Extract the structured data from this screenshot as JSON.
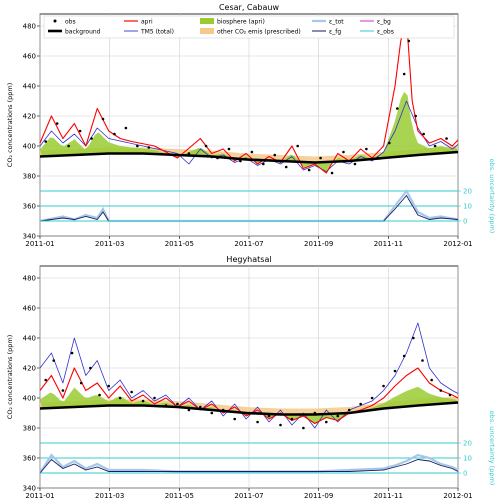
{
  "chart_data": [
    {
      "type": "line",
      "title": "Cesar, Cabauw",
      "ylabel": "CO₂ concentrations (ppm)",
      "ylabel_right": "obs. uncertainty (ppm)",
      "x_ticks": [
        "2011-01",
        "2011-03",
        "2011-05",
        "2011-07",
        "2011-09",
        "2011-11",
        "2012-01"
      ],
      "y_ticks": [
        340,
        360,
        380,
        400,
        420,
        440,
        460,
        480
      ],
      "y_ticks_right": [
        0,
        10,
        20
      ],
      "ylim": [
        340,
        488
      ],
      "xlim": [
        0,
        365
      ],
      "legend": [
        "obs",
        "background",
        "apri",
        "TM5 (total)",
        "biosphere (apri)",
        "other CO₂ emis (prescribed)",
        "ε_tot",
        "ε_fg",
        "ε_bg",
        "ε_obs"
      ],
      "legend_placement": "top",
      "grid": true,
      "series": [
        {
          "name": "background",
          "x": [
            0,
            30,
            60,
            90,
            120,
            150,
            180,
            210,
            240,
            270,
            300,
            330,
            365
          ],
          "values": [
            393,
            394,
            395,
            395,
            394,
            393,
            391,
            390,
            389,
            390,
            392,
            394,
            396
          ]
        },
        {
          "name": "apri",
          "x": [
            0,
            10,
            20,
            30,
            40,
            50,
            60,
            70,
            80,
            100,
            120,
            140,
            150,
            160,
            170,
            180,
            190,
            200,
            210,
            220,
            230,
            240,
            250,
            260,
            270,
            280,
            290,
            300,
            305,
            310,
            315,
            320,
            325,
            330,
            340,
            350,
            360,
            365
          ],
          "values": [
            402,
            420,
            405,
            415,
            400,
            425,
            410,
            405,
            403,
            400,
            392,
            405,
            395,
            398,
            390,
            395,
            388,
            393,
            389,
            400,
            385,
            388,
            382,
            395,
            390,
            398,
            392,
            400,
            420,
            440,
            470,
            485,
            430,
            410,
            402,
            405,
            400,
            404
          ]
        },
        {
          "name": "TM5 (total)",
          "x": [
            0,
            10,
            20,
            30,
            40,
            50,
            60,
            90,
            120,
            130,
            140,
            150,
            160,
            170,
            180,
            190,
            200,
            210,
            220,
            230,
            240,
            250,
            260,
            270,
            280,
            290,
            300,
            310,
            320,
            330,
            340,
            350,
            360,
            365
          ],
          "values": [
            400,
            410,
            402,
            408,
            400,
            412,
            405,
            400,
            395,
            388,
            398,
            392,
            394,
            389,
            392,
            387,
            391,
            388,
            393,
            384,
            387,
            383,
            390,
            388,
            393,
            390,
            396,
            410,
            430,
            412,
            400,
            403,
            398,
            401
          ]
        },
        {
          "name": "obs",
          "x": [
            5,
            15,
            25,
            35,
            45,
            55,
            65,
            75,
            85,
            95,
            130,
            145,
            155,
            165,
            175,
            185,
            195,
            205,
            215,
            225,
            235,
            245,
            255,
            265,
            275,
            285,
            295,
            305,
            312,
            318,
            322,
            328,
            335,
            345,
            355
          ],
          "values": [
            403,
            415,
            400,
            410,
            405,
            418,
            408,
            412,
            400,
            399,
            395,
            400,
            392,
            398,
            390,
            396,
            388,
            394,
            386,
            400,
            384,
            392,
            382,
            396,
            388,
            398,
            392,
            402,
            425,
            448,
            470,
            420,
            408,
            400,
            405
          ]
        }
      ],
      "uncertainty": {
        "eps_tot": {
          "x": [
            0,
            20,
            30,
            40,
            50,
            55,
            60,
            300,
            310,
            320,
            330,
            340,
            350,
            365
          ],
          "values": [
            0,
            3,
            1,
            4,
            2,
            8,
            0,
            0,
            10,
            20,
            6,
            2,
            3,
            1
          ]
        },
        "eps_fg": {
          "x": [
            0,
            20,
            30,
            40,
            50,
            55,
            60,
            300,
            310,
            320,
            330,
            340,
            350,
            365
          ],
          "values": [
            0,
            2,
            1,
            3,
            1,
            6,
            0,
            0,
            8,
            17,
            4,
            1,
            2,
            1
          ]
        },
        "eps_obs": {
          "x": [
            0,
            365
          ],
          "values": [
            0,
            0
          ]
        }
      }
    },
    {
      "type": "line",
      "title": "Hegyhatsal",
      "ylabel": "CO₂ concentrations (ppm)",
      "ylabel_right": "obs. uncertainty (ppm)",
      "x_ticks": [
        "2011-01",
        "2011-03",
        "2011-05",
        "2011-07",
        "2011-09",
        "2011-11",
        "2012-01"
      ],
      "y_ticks": [
        340,
        360,
        380,
        400,
        420,
        440,
        460,
        480
      ],
      "y_ticks_right": [
        0,
        10,
        20
      ],
      "ylim": [
        340,
        488
      ],
      "xlim": [
        0,
        365
      ],
      "grid": true,
      "series": [
        {
          "name": "background",
          "x": [
            0,
            30,
            60,
            90,
            120,
            150,
            180,
            210,
            240,
            270,
            300,
            330,
            365
          ],
          "values": [
            393,
            394,
            395,
            395,
            394,
            392,
            390,
            389,
            389,
            390,
            393,
            395,
            397
          ]
        },
        {
          "name": "apri",
          "x": [
            0,
            10,
            20,
            30,
            40,
            50,
            60,
            70,
            80,
            90,
            100,
            110,
            120,
            130,
            140,
            150,
            160,
            170,
            180,
            190,
            200,
            210,
            220,
            230,
            240,
            250,
            260,
            270,
            280,
            290,
            300,
            310,
            320,
            330,
            340,
            350,
            360,
            365
          ],
          "values": [
            405,
            415,
            400,
            420,
            405,
            410,
            400,
            408,
            398,
            402,
            396,
            400,
            394,
            398,
            392,
            396,
            390,
            394,
            388,
            392,
            386,
            390,
            385,
            388,
            383,
            387,
            385,
            390,
            392,
            395,
            400,
            408,
            415,
            420,
            410,
            405,
            402,
            400
          ]
        },
        {
          "name": "TM5 (total)",
          "x": [
            0,
            10,
            20,
            30,
            40,
            50,
            60,
            70,
            80,
            90,
            100,
            110,
            120,
            130,
            140,
            150,
            160,
            170,
            180,
            190,
            200,
            210,
            220,
            230,
            240,
            250,
            260,
            270,
            280,
            290,
            300,
            310,
            320,
            330,
            340,
            350,
            360,
            365
          ],
          "values": [
            420,
            430,
            410,
            440,
            415,
            425,
            405,
            412,
            400,
            405,
            398,
            402,
            394,
            400,
            392,
            398,
            388,
            396,
            386,
            394,
            384,
            392,
            382,
            390,
            380,
            392,
            384,
            392,
            395,
            398,
            405,
            415,
            430,
            450,
            420,
            410,
            405,
            403
          ]
        },
        {
          "name": "obs",
          "x": [
            5,
            12,
            20,
            28,
            36,
            44,
            52,
            60,
            70,
            80,
            90,
            100,
            110,
            120,
            130,
            140,
            150,
            160,
            170,
            180,
            190,
            200,
            210,
            220,
            230,
            240,
            250,
            260,
            270,
            280,
            290,
            300,
            310,
            318,
            326,
            334,
            342,
            350,
            358
          ],
          "values": [
            412,
            425,
            405,
            430,
            410,
            420,
            402,
            408,
            400,
            404,
            398,
            400,
            395,
            396,
            392,
            394,
            390,
            392,
            386,
            390,
            384,
            388,
            382,
            386,
            380,
            390,
            384,
            388,
            392,
            396,
            400,
            408,
            418,
            428,
            440,
            425,
            412,
            405,
            402
          ]
        }
      ],
      "uncertainty": {
        "eps_tot": {
          "x": [
            0,
            10,
            20,
            30,
            40,
            50,
            60,
            90,
            120,
            150,
            180,
            210,
            240,
            270,
            300,
            310,
            320,
            330,
            340,
            350,
            360,
            365
          ],
          "values": [
            0,
            12,
            4,
            8,
            3,
            6,
            2,
            2,
            1,
            1,
            1,
            1,
            1,
            2,
            3,
            5,
            8,
            12,
            10,
            6,
            4,
            2
          ]
        },
        "eps_fg": {
          "x": [
            0,
            10,
            20,
            30,
            40,
            50,
            60,
            90,
            120,
            150,
            180,
            210,
            240,
            270,
            300,
            310,
            320,
            330,
            340,
            350,
            360,
            365
          ],
          "values": [
            0,
            9,
            3,
            6,
            2,
            4,
            1,
            1,
            1,
            1,
            1,
            1,
            1,
            1,
            2,
            4,
            6,
            9,
            8,
            5,
            3,
            1
          ]
        },
        "eps_obs": {
          "x": [
            0,
            365
          ],
          "values": [
            0,
            0
          ]
        }
      }
    }
  ]
}
